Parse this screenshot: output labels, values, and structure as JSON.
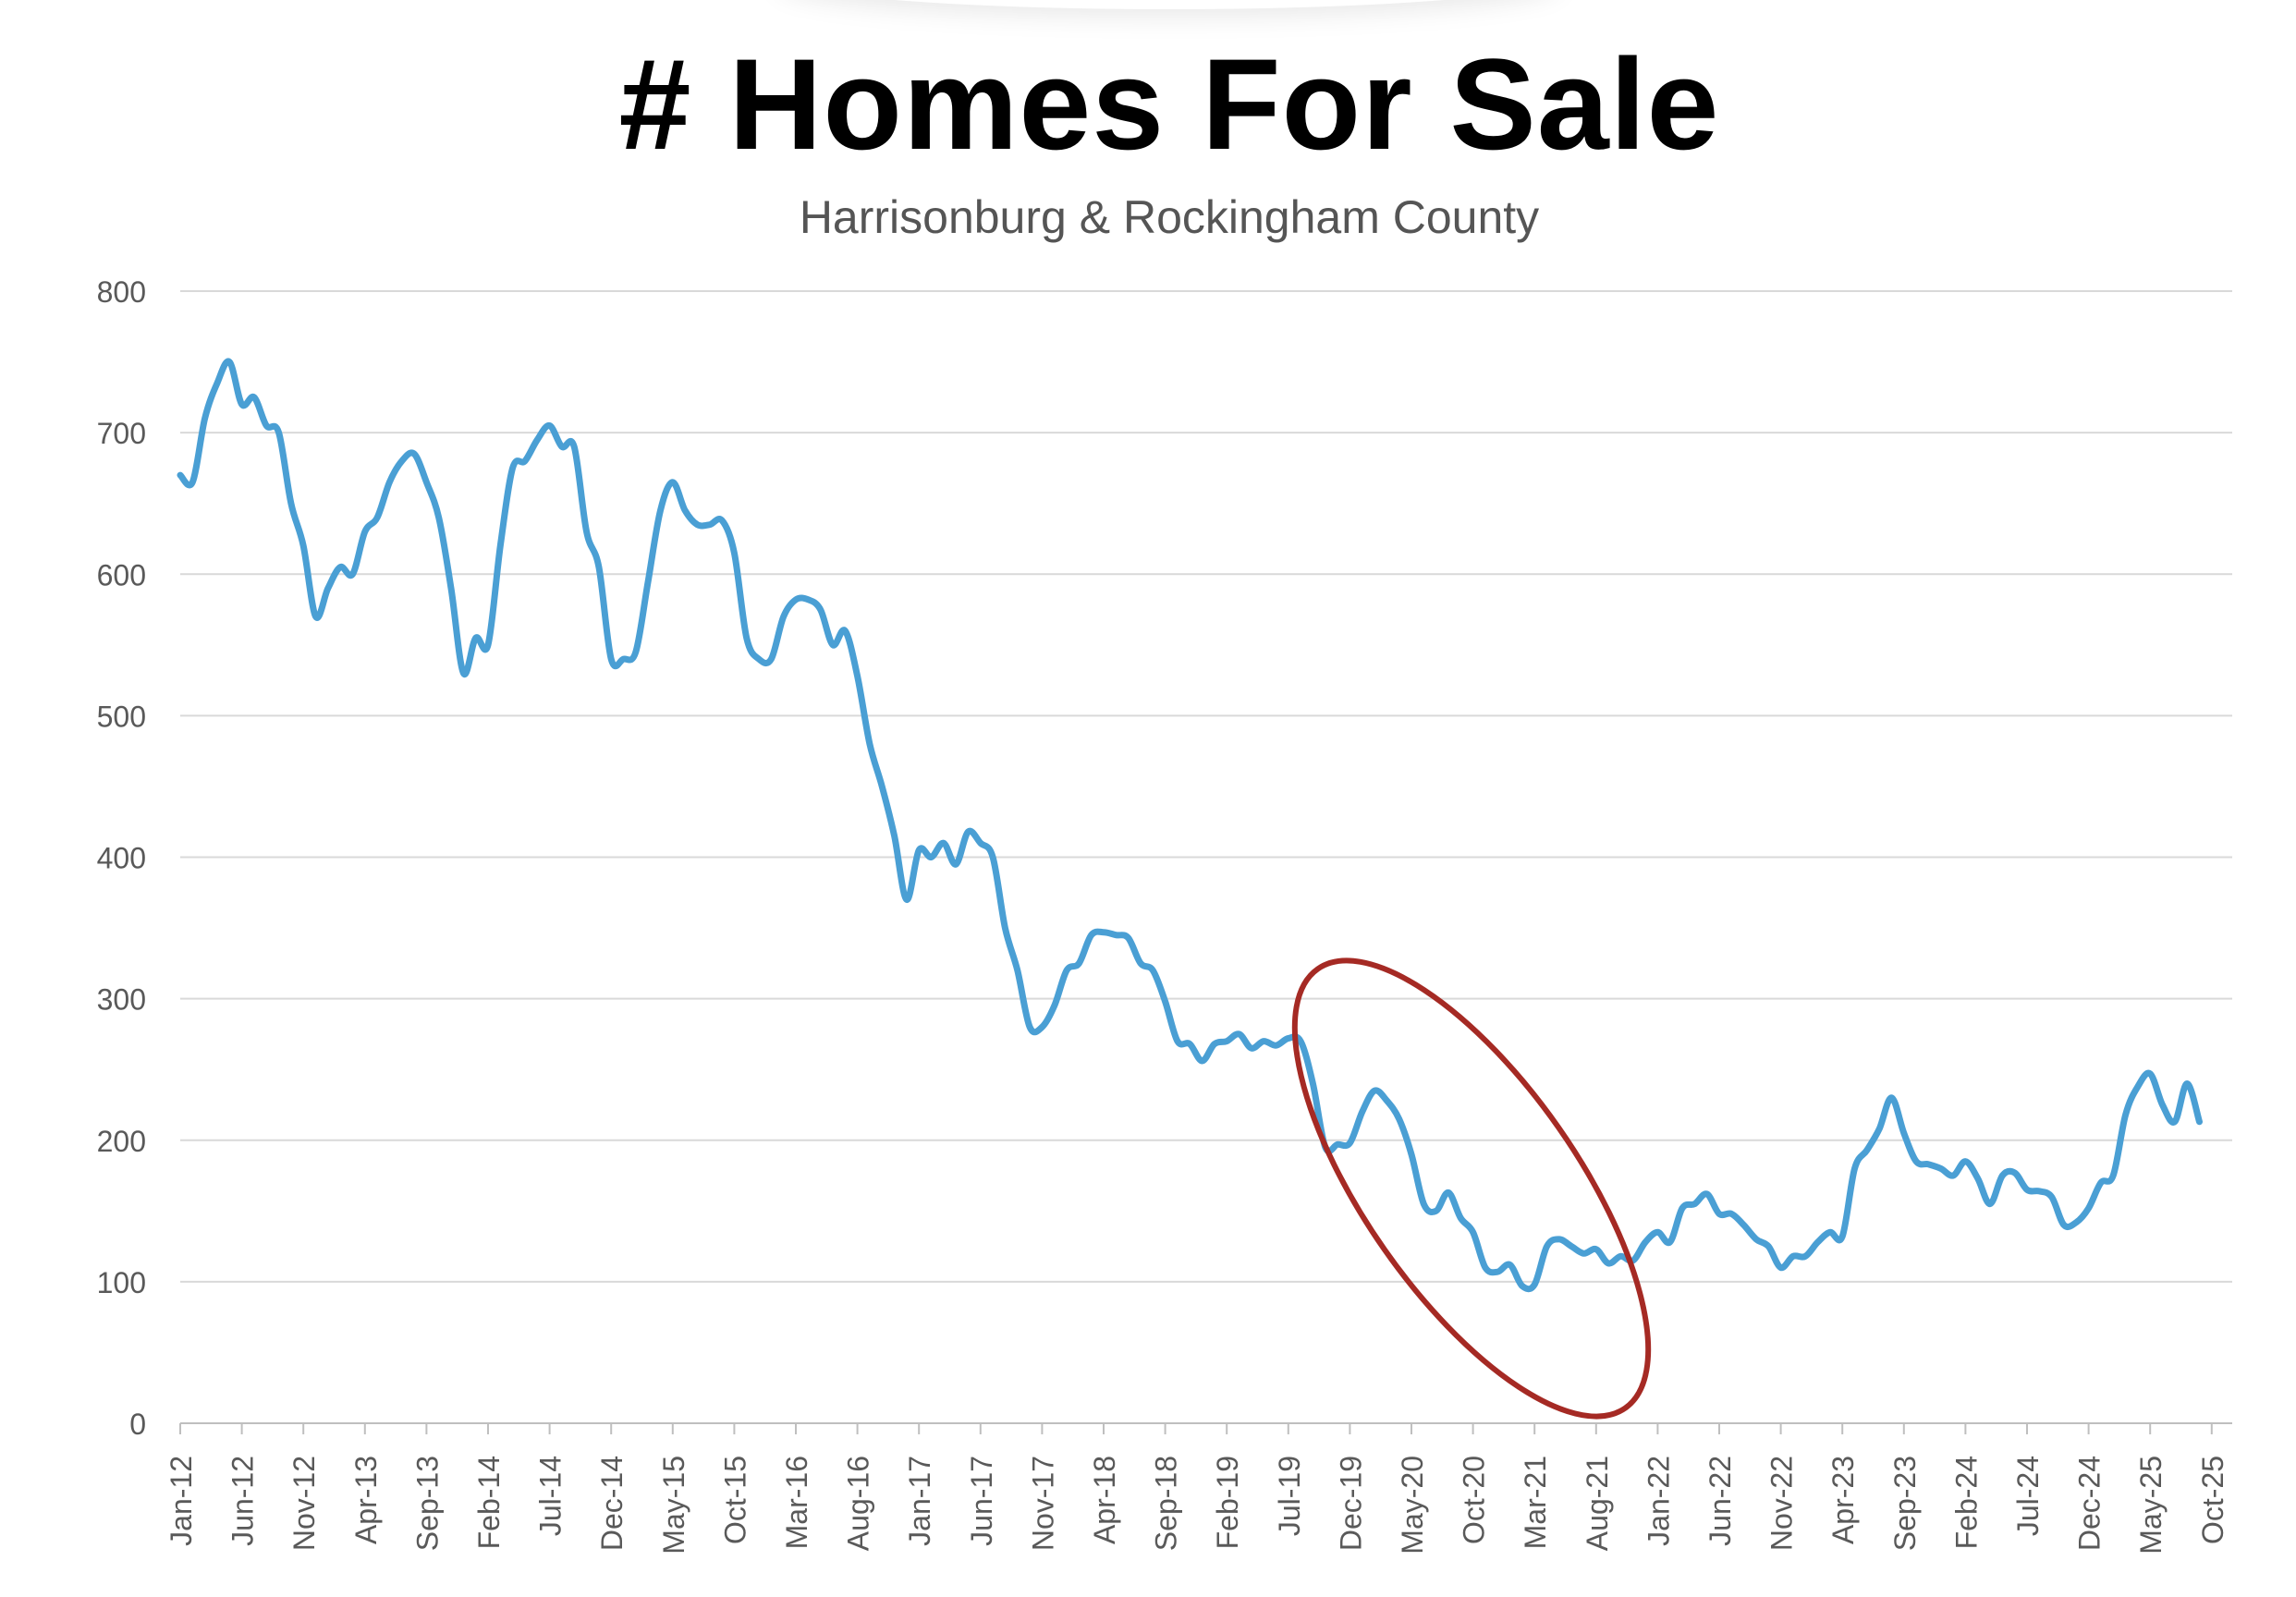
{
  "chart_data": {
    "type": "line",
    "title": "# Homes For Sale",
    "subtitle": "Harrisonburg & Rockingham County",
    "xlabel": "",
    "ylabel": "",
    "ylim": [
      0,
      800
    ],
    "yticks": [
      0,
      100,
      200,
      300,
      400,
      500,
      600,
      700,
      800
    ],
    "grid": true,
    "line_color": "#4a9fd4",
    "annotation_color": "#a52a24",
    "annotation": {
      "shape": "ellipse",
      "x_range": [
        "Dec-19",
        "Aug-21"
      ]
    },
    "x_tick_labels": [
      "Jan-12",
      "Jun-12",
      "Nov-12",
      "Apr-13",
      "Sep-13",
      "Feb-14",
      "Jul-14",
      "Dec-14",
      "May-15",
      "Oct-15",
      "Mar-16",
      "Aug-16",
      "Jan-17",
      "Jun-17",
      "Nov-17",
      "Apr-18",
      "Sep-18",
      "Feb-19",
      "Jul-19",
      "Dec-19",
      "May-20",
      "Oct-20",
      "Mar-21",
      "Aug-21",
      "Jan-22",
      "Jun-22",
      "Nov-22",
      "Apr-23",
      "Sep-23",
      "Feb-24",
      "Jul-24",
      "Dec-24",
      "May-25",
      "Oct-25"
    ],
    "start_month": "Jan-12",
    "series": [
      {
        "name": "",
        "values": [
          670,
          665,
          710,
          735,
          750,
          720,
          725,
          705,
          700,
          650,
          620,
          570,
          590,
          605,
          600,
          630,
          640,
          665,
          680,
          685,
          665,
          640,
          590,
          530,
          555,
          550,
          620,
          675,
          680,
          695,
          705,
          690,
          690,
          630,
          605,
          540,
          540,
          545,
          595,
          645,
          665,
          645,
          635,
          635,
          638,
          615,
          555,
          540,
          540,
          570,
          582,
          582,
          575,
          550,
          560,
          528,
          480,
          450,
          415,
          370,
          405,
          400,
          410,
          395,
          418,
          410,
          400,
          350,
          320,
          280,
          280,
          295,
          320,
          325,
          345,
          347,
          345,
          343,
          325,
          320,
          298,
          270,
          268,
          256,
          268,
          270,
          275,
          265,
          270,
          267,
          272,
          270,
          240,
          195,
          197,
          198,
          220,
          235,
          228,
          215,
          190,
          155,
          150,
          163,
          145,
          135,
          110,
          107,
          112,
          97,
          98,
          125,
          130,
          125,
          120,
          123,
          113,
          118,
          115,
          128,
          135,
          128,
          152,
          155,
          162,
          148,
          148,
          140,
          130,
          125,
          110,
          118,
          118,
          128,
          135,
          132,
          180,
          193,
          208,
          230,
          205,
          185,
          183,
          180,
          175,
          185,
          173,
          155,
          175,
          177,
          165,
          164,
          160,
          140,
          142,
          152,
          170,
          175,
          218,
          238,
          247,
          225,
          213,
          240,
          213
        ]
      }
    ]
  }
}
